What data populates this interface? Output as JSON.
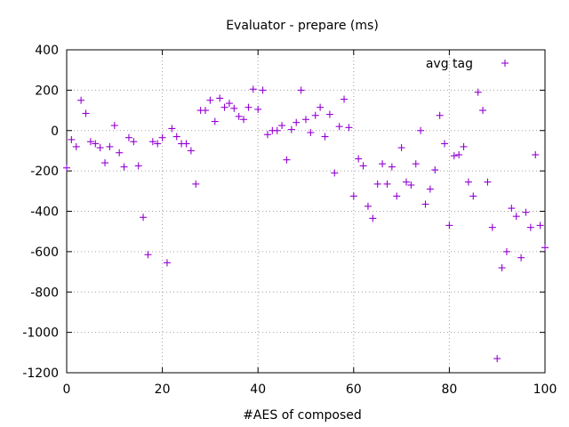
{
  "chart_data": {
    "type": "scatter",
    "title": "Evaluator - prepare (ms)",
    "xlabel": "#AES of composed",
    "ylabel": "",
    "xlim": [
      0,
      100
    ],
    "ylim": [
      -1200,
      400
    ],
    "xticks": [
      0,
      20,
      40,
      60,
      80,
      100
    ],
    "yticks": [
      -1200,
      -1000,
      -800,
      -600,
      -400,
      -200,
      0,
      200,
      400
    ],
    "grid": true,
    "legend_position": "top-right",
    "color": "#9400d3",
    "marker": "plus",
    "series": [
      {
        "name": "avg tag",
        "x": [
          0,
          1,
          2,
          3,
          4,
          5,
          6,
          7,
          8,
          9,
          10,
          11,
          12,
          13,
          14,
          15,
          16,
          17,
          18,
          19,
          20,
          21,
          22,
          23,
          24,
          25,
          26,
          27,
          28,
          29,
          30,
          31,
          32,
          33,
          34,
          35,
          36,
          37,
          38,
          39,
          40,
          41,
          42,
          43,
          44,
          45,
          46,
          47,
          48,
          49,
          50,
          51,
          52,
          53,
          54,
          55,
          56,
          57,
          58,
          59,
          60,
          61,
          62,
          63,
          64,
          65,
          66,
          67,
          68,
          69,
          70,
          71,
          72,
          73,
          74,
          75,
          76,
          77,
          78,
          79,
          80,
          81,
          82,
          83,
          84,
          85,
          86,
          87,
          88,
          89,
          90,
          91,
          92,
          93,
          94,
          95,
          96,
          97,
          98,
          99,
          100
        ],
        "y": [
          -185,
          -45,
          -80,
          150,
          85,
          -55,
          -65,
          -85,
          -160,
          -80,
          25,
          -110,
          -180,
          -35,
          -55,
          -175,
          -430,
          -615,
          -55,
          -65,
          -35,
          -655,
          10,
          -30,
          -65,
          -65,
          -100,
          -265,
          100,
          100,
          150,
          45,
          160,
          115,
          135,
          110,
          70,
          55,
          115,
          205,
          105,
          200,
          -20,
          0,
          0,
          25,
          -145,
          5,
          40,
          200,
          55,
          -10,
          75,
          115,
          -30,
          80,
          -210,
          20,
          155,
          15,
          -325,
          -140,
          -175,
          -375,
          -435,
          -265,
          -165,
          -265,
          -180,
          -325,
          -85,
          -255,
          -270,
          -165,
          0,
          -365,
          -290,
          -195,
          75,
          -65,
          -470,
          -125,
          -120,
          -80,
          -255,
          -325,
          190,
          100,
          -255,
          -480,
          -1130,
          -680,
          -600,
          -385,
          -425,
          -630,
          -405,
          -480,
          -120,
          -470,
          -580
        ]
      }
    ]
  }
}
